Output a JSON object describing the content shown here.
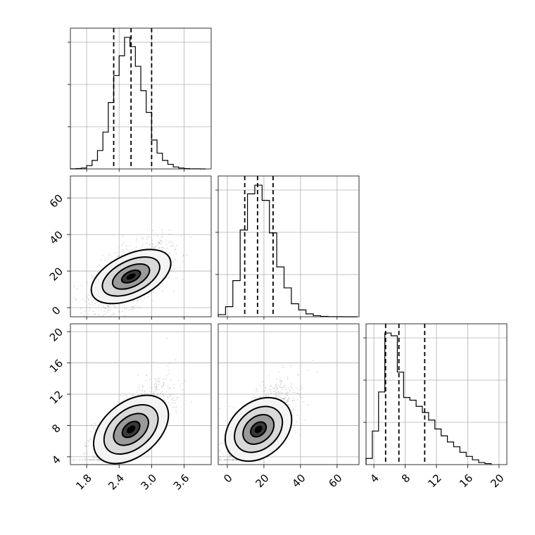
{
  "chart_data": {
    "type": "corner",
    "grid": true,
    "parameters": [
      {
        "range": [
          1.5,
          4.1
        ],
        "ticks": [
          1.8,
          2.4,
          3.0,
          3.6
        ],
        "tick_labels": [
          "1.8",
          "2.4",
          "3.0",
          "3.6"
        ],
        "quantiles": [
          2.3,
          2.62,
          3.0
        ],
        "bins": [
          1.5,
          1.6,
          1.7,
          1.8,
          1.9,
          2.0,
          2.1,
          2.2,
          2.3,
          2.4,
          2.5,
          2.6,
          2.7,
          2.8,
          2.9,
          3.0,
          3.1,
          3.2,
          3.3,
          3.4,
          3.5,
          3.6,
          3.7,
          3.8,
          3.9,
          4.0
        ],
        "hist": [
          2,
          5,
          14,
          50,
          130,
          280,
          560,
          1010,
          1420,
          1720,
          2000,
          1860,
          1560,
          1190,
          860,
          440,
          240,
          130,
          70,
          30,
          14,
          5,
          2,
          1,
          0
        ]
      },
      {
        "range": [
          -5,
          72
        ],
        "ticks": [
          0,
          20,
          40,
          60
        ],
        "tick_labels": [
          "0",
          "20",
          "40",
          "60"
        ],
        "quantiles": [
          9.5,
          16.5,
          25
        ],
        "bins": [
          -5,
          -1,
          3,
          7,
          11,
          15,
          19,
          23,
          27,
          31,
          35,
          39,
          43,
          47,
          51,
          55,
          59,
          63,
          67,
          71
        ],
        "hist": [
          30,
          140,
          500,
          1200,
          1700,
          1820,
          1610,
          1160,
          690,
          400,
          180,
          95,
          40,
          15,
          5,
          2,
          1,
          0,
          0
        ]
      },
      {
        "range": [
          3,
          21
        ],
        "ticks": [
          4,
          8,
          12,
          16,
          20
        ],
        "tick_labels": [
          "4",
          "8",
          "12",
          "16",
          "20"
        ],
        "quantiles": [
          5.5,
          7.2,
          10.5
        ],
        "bins": [
          3.0,
          3.8,
          4.6,
          5.4,
          6.2,
          7.0,
          7.8,
          8.6,
          9.4,
          10.2,
          11.0,
          11.8,
          12.6,
          13.4,
          14.2,
          15.0,
          15.8,
          16.6,
          17.4,
          18.2,
          19.0
        ],
        "hist": [
          90,
          490,
          1060,
          1920,
          1880,
          1350,
          980,
          940,
          850,
          760,
          650,
          520,
          420,
          330,
          260,
          180,
          120,
          70,
          30,
          15
        ]
      }
    ],
    "correlations": {
      "1-0": 0.55,
      "2-0": 0.75,
      "2-1": 0.7
    },
    "centers": [
      2.62,
      17,
      7.5
    ],
    "spreads": [
      0.35,
      9,
      2.6
    ]
  }
}
